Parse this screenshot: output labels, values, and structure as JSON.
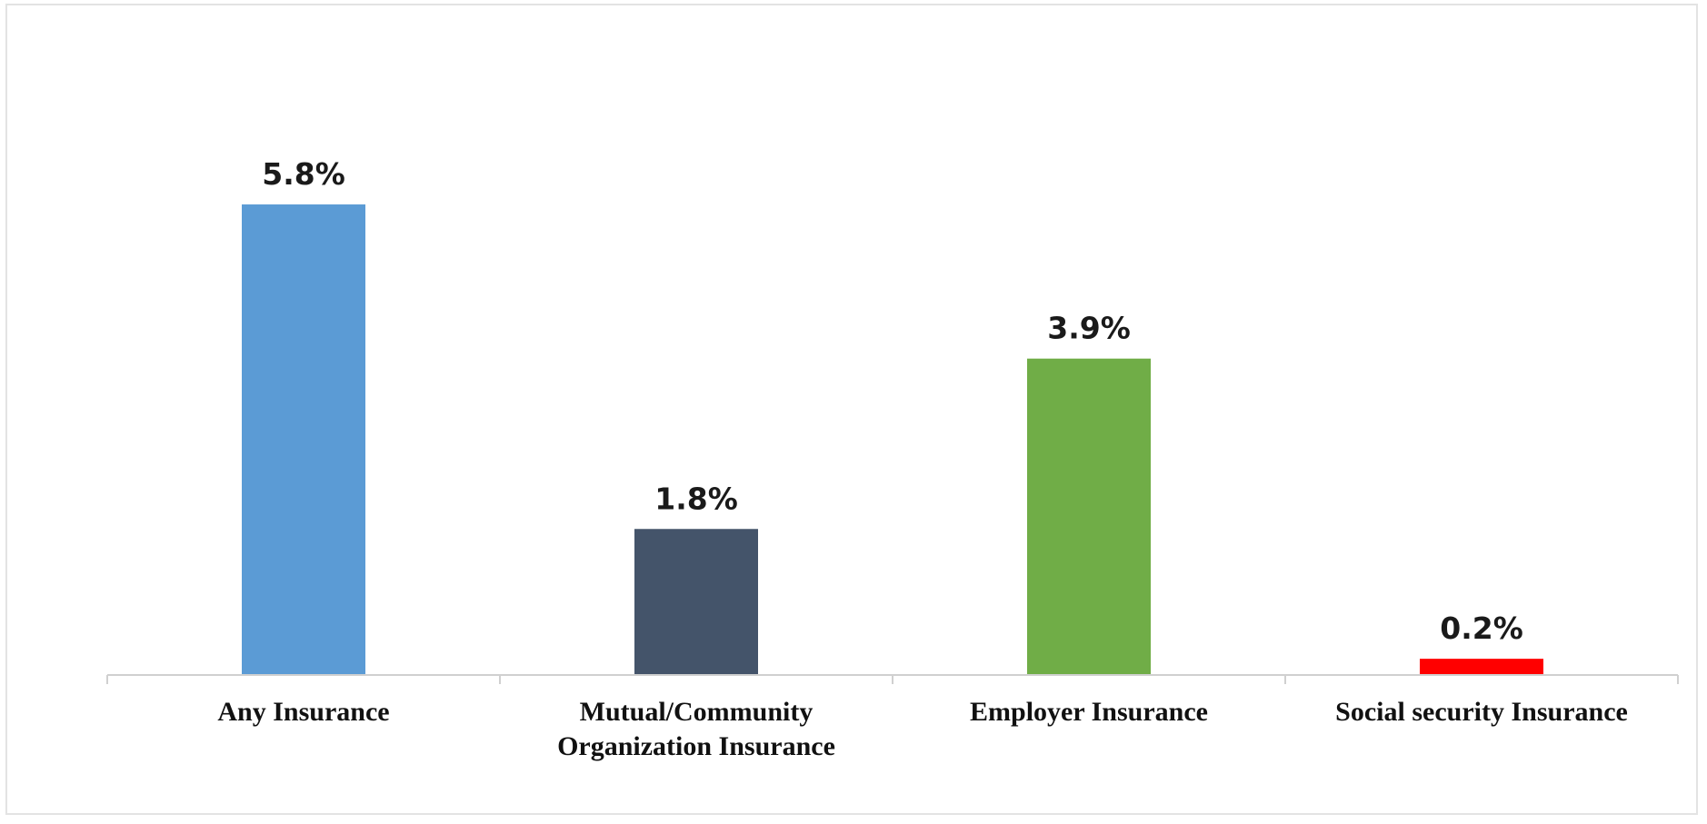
{
  "chart_data": {
    "type": "bar",
    "categories": [
      [
        "Any Insurance"
      ],
      [
        "Mutual/Community",
        "Organization Insurance"
      ],
      [
        "Employer Insurance"
      ],
      [
        "Social security Insurance"
      ]
    ],
    "values": [
      5.8,
      1.8,
      3.9,
      0.2
    ],
    "value_labels": [
      "5.8%",
      "1.8%",
      "3.9%",
      "0.2%"
    ],
    "bar_colors": [
      "#5b9bd5",
      "#44546a",
      "#70ad47",
      "#ff0000"
    ],
    "title": "",
    "xlabel": "",
    "ylabel": "",
    "ylim": [
      0,
      7.2
    ],
    "grid": false,
    "legend": "none"
  }
}
